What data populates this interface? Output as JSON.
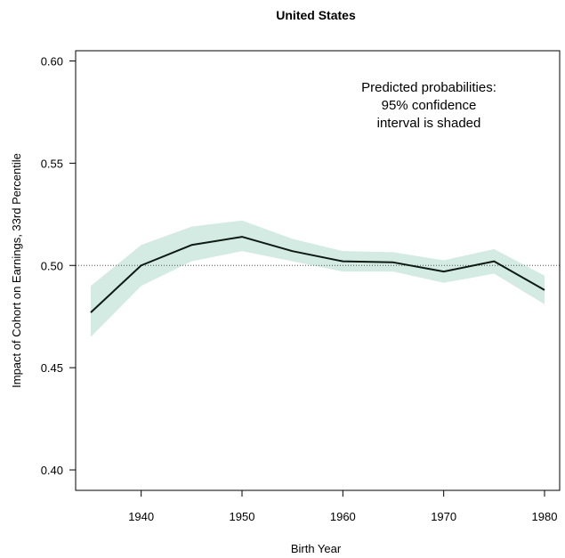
{
  "chart_data": {
    "type": "line",
    "title": "United States",
    "xlabel": "Birth Year",
    "ylabel": "Impact of Cohort on Earnings, 33rd Percentile",
    "xlim": [
      1933.5,
      1981.5
    ],
    "ylim": [
      0.39,
      0.605
    ],
    "x_ticks": [
      1940,
      1950,
      1960,
      1970,
      1980
    ],
    "y_ticks": [
      0.4,
      0.45,
      0.5,
      0.55,
      0.6
    ],
    "x_tick_labels": [
      "1940",
      "1950",
      "1960",
      "1970",
      "1980"
    ],
    "y_tick_labels": [
      "0.40",
      "0.45",
      "0.50",
      "0.55",
      "0.60"
    ],
    "reference_line": 0.5,
    "annotation": [
      "Predicted probabilities:",
      "95% confidence",
      "interval is shaded"
    ],
    "series": [
      {
        "x": [
          1935,
          1940,
          1945,
          1950,
          1955,
          1960,
          1965,
          1970,
          1975,
          1980
        ],
        "values": [
          0.477,
          0.5,
          0.51,
          0.514,
          0.507,
          0.502,
          0.5015,
          0.497,
          0.502,
          0.488
        ],
        "lower": [
          0.465,
          0.49,
          0.502,
          0.507,
          0.502,
          0.497,
          0.497,
          0.4915,
          0.496,
          0.481
        ],
        "upper": [
          0.49,
          0.51,
          0.519,
          0.522,
          0.513,
          0.507,
          0.5065,
          0.5025,
          0.508,
          0.495
        ]
      }
    ],
    "colors": {
      "band": "#d3ebe3",
      "line": "#0d1a14",
      "reference": "#555555"
    }
  }
}
